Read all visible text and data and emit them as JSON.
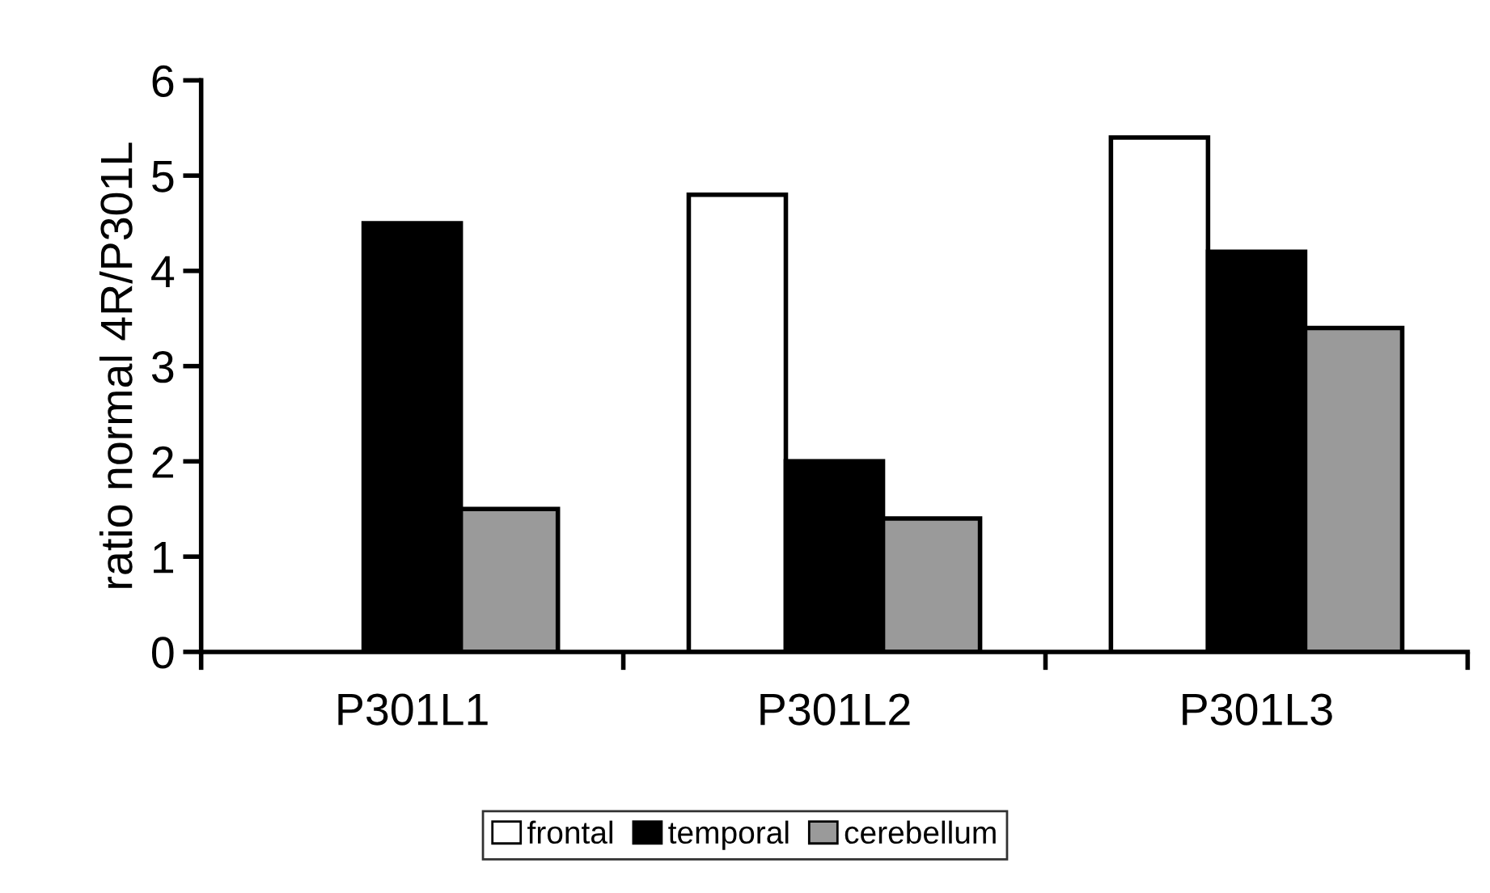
{
  "chart_data": {
    "type": "bar",
    "ylabel": "ratio normal 4R/P301L",
    "categories": [
      "P301L1",
      "P301L2",
      "P301L3"
    ],
    "series": [
      {
        "name": "frontal",
        "color": "#ffffff",
        "values": [
          null,
          4.8,
          5.4
        ]
      },
      {
        "name": "temporal",
        "color": "#000000",
        "values": [
          4.5,
          2.0,
          4.2
        ]
      },
      {
        "name": "cerebellum",
        "color": "#9a9a9a",
        "values": [
          1.5,
          1.4,
          3.4
        ]
      }
    ],
    "ylim": [
      0,
      6
    ],
    "yticks": [
      0,
      1,
      2,
      3,
      4,
      5,
      6
    ],
    "grid": false,
    "legend": "bottom"
  }
}
